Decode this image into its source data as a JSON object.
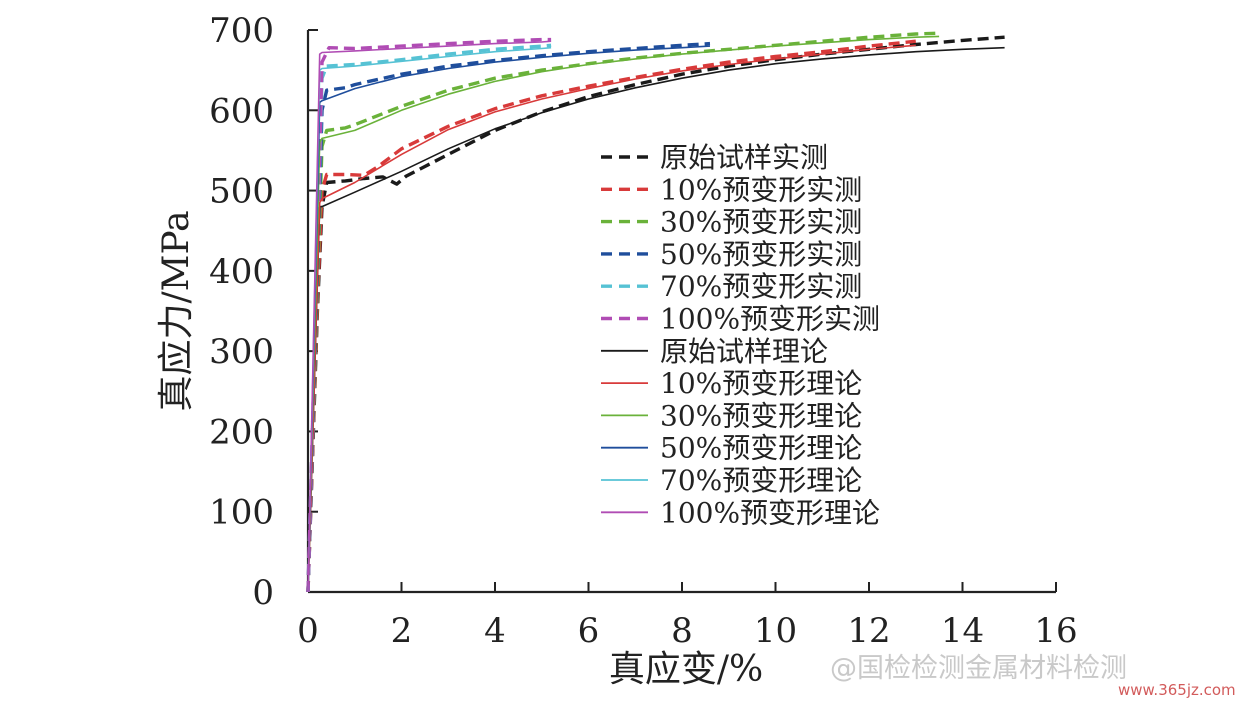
{
  "chart_data": {
    "type": "line",
    "title": "",
    "xlabel": "真应变/%",
    "ylabel": "真应力/MPa",
    "xlim": [
      0,
      16
    ],
    "ylim": [
      0,
      700
    ],
    "xticks": [
      "0",
      "2",
      "4",
      "6",
      "8",
      "10",
      "12",
      "14",
      "16"
    ],
    "yticks": [
      "0",
      "100",
      "200",
      "300",
      "400",
      "500",
      "600",
      "700"
    ],
    "legend_position": "center-right",
    "series": [
      {
        "name": "原始试样实测",
        "style": "dashed",
        "color": "#1a1a1a",
        "x": [
          0,
          0.2,
          0.3,
          0.4,
          0.8,
          1.2,
          1.6,
          1.9,
          2.1,
          2.5,
          3.0,
          4.0,
          5.0,
          6.0,
          7.0,
          8.0,
          9.0,
          10.0,
          11.0,
          12.0,
          13.0,
          14.0,
          14.9
        ],
        "y": [
          0,
          350,
          480,
          510,
          512,
          515,
          517,
          508,
          518,
          530,
          545,
          575,
          598,
          617,
          632,
          645,
          655,
          663,
          670,
          676,
          682,
          687,
          691
        ]
      },
      {
        "name": "10%预变形实测",
        "style": "dashed",
        "color": "#d83a3a",
        "x": [
          0,
          0.2,
          0.3,
          0.4,
          0.8,
          1.2,
          1.5,
          2.0,
          3.0,
          4.0,
          5.0,
          6.0,
          7.0,
          8.0,
          9.0,
          10.0,
          11.0,
          12.0,
          13.0
        ],
        "y": [
          0,
          360,
          500,
          520,
          520,
          519,
          530,
          552,
          580,
          602,
          618,
          630,
          641,
          651,
          660,
          667,
          673,
          680,
          686
        ]
      },
      {
        "name": "30%预变形实测",
        "style": "dashed",
        "color": "#6ab23a",
        "x": [
          0,
          0.2,
          0.3,
          0.4,
          0.8,
          1.0,
          2.0,
          3.0,
          4.0,
          5.0,
          6.0,
          7.0,
          8.0,
          9.0,
          10.0,
          11.0,
          12.0,
          13.0,
          13.5
        ],
        "y": [
          0,
          380,
          555,
          575,
          578,
          582,
          605,
          625,
          640,
          650,
          658,
          665,
          671,
          676,
          681,
          686,
          691,
          695,
          696
        ]
      },
      {
        "name": "50%预变形实测",
        "style": "dashed",
        "color": "#1f4e9c",
        "x": [
          0,
          0.2,
          0.3,
          0.4,
          0.8,
          1.0,
          2.0,
          3.0,
          4.0,
          5.0,
          6.0,
          7.0,
          8.0,
          8.6
        ],
        "y": [
          0,
          400,
          600,
          625,
          628,
          632,
          645,
          655,
          662,
          668,
          673,
          677,
          681,
          683
        ]
      },
      {
        "name": "70%预变形实测",
        "style": "dashed",
        "color": "#56c2d4",
        "x": [
          0,
          0.2,
          0.3,
          0.4,
          1.0,
          2.0,
          3.0,
          4.0,
          5.0,
          5.2
        ],
        "y": [
          0,
          420,
          640,
          655,
          657,
          663,
          670,
          676,
          680,
          681
        ]
      },
      {
        "name": "100%预变形实测",
        "style": "dashed",
        "color": "#b04cb4",
        "x": [
          0,
          0.2,
          0.3,
          0.45,
          1.0,
          2.0,
          3.0,
          4.0,
          5.0,
          5.2
        ],
        "y": [
          0,
          430,
          660,
          678,
          677,
          680,
          683,
          686,
          688,
          688
        ]
      },
      {
        "name": "原始试样理论",
        "style": "solid",
        "color": "#1a1a1a",
        "x": [
          0,
          0.25,
          0.3,
          1.0,
          2.0,
          3.0,
          4.0,
          5.0,
          6.0,
          7.0,
          8.0,
          9.0,
          10.0,
          11.0,
          12.0,
          13.0,
          14.0,
          14.9
        ],
        "y": [
          0,
          480,
          480,
          498,
          524,
          552,
          577,
          597,
          614,
          628,
          640,
          650,
          658,
          664,
          669,
          673,
          676,
          678
        ]
      },
      {
        "name": "10%预变形理论",
        "style": "solid",
        "color": "#d83a3a",
        "x": [
          0,
          0.25,
          0.3,
          1.0,
          2.0,
          3.0,
          4.0,
          5.0,
          6.0,
          7.0,
          8.0,
          9.0,
          10.0,
          11.0,
          12.0,
          13.0
        ],
        "y": [
          0,
          485,
          490,
          510,
          545,
          576,
          598,
          614,
          627,
          639,
          649,
          657,
          664,
          670,
          676,
          681
        ]
      },
      {
        "name": "30%预变形理论",
        "style": "solid",
        "color": "#6ab23a",
        "x": [
          0,
          0.25,
          0.3,
          1.0,
          2.0,
          3.0,
          4.0,
          5.0,
          6.0,
          7.0,
          8.0,
          9.0,
          10.0,
          11.0,
          12.0,
          13.0,
          13.5
        ],
        "y": [
          0,
          560,
          565,
          575,
          600,
          620,
          636,
          648,
          657,
          664,
          670,
          675,
          680,
          684,
          688,
          691,
          692
        ]
      },
      {
        "name": "50%预变形理论",
        "style": "solid",
        "color": "#1f4e9c",
        "x": [
          0,
          0.25,
          0.3,
          1.0,
          2.0,
          3.0,
          4.0,
          5.0,
          6.0,
          7.0,
          8.0,
          8.6
        ],
        "y": [
          0,
          610,
          612,
          627,
          642,
          652,
          660,
          666,
          671,
          675,
          678,
          680
        ]
      },
      {
        "name": "70%预变形理论",
        "style": "solid",
        "color": "#56c2d4",
        "x": [
          0,
          0.25,
          0.3,
          1.0,
          2.0,
          3.0,
          4.0,
          5.0,
          5.2
        ],
        "y": [
          0,
          650,
          652,
          655,
          661,
          667,
          673,
          677,
          678
        ]
      },
      {
        "name": "100%预变形理论",
        "style": "solid",
        "color": "#b04cb4",
        "x": [
          0,
          0.25,
          0.3,
          1.0,
          2.0,
          3.0,
          4.0,
          5.0,
          5.2
        ],
        "y": [
          0,
          670,
          672,
          674,
          677,
          680,
          683,
          685,
          686
        ]
      }
    ]
  },
  "watermark": "@国检检测金属材料检测",
  "site": "www.365jz.com"
}
